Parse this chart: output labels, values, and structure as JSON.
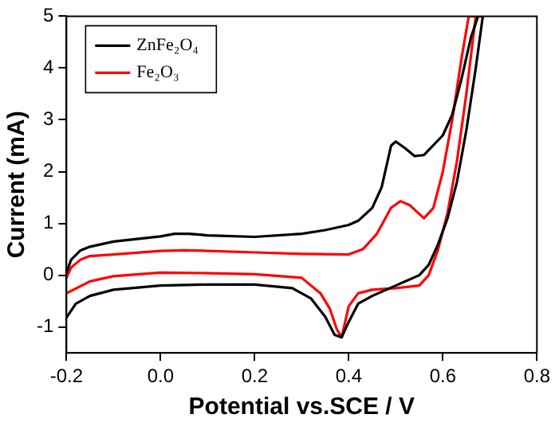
{
  "chart_data": {
    "type": "line",
    "xlabel": "Potential vs.SCE / V",
    "ylabel": "Current (mA)",
    "xlim": [
      -0.2,
      0.8
    ],
    "xticks": [
      {
        "value": -0.2,
        "label": "-0.2"
      },
      {
        "value": 0,
        "label": "0.0"
      },
      {
        "value": 0.2,
        "label": "0.2"
      },
      {
        "value": 0.4,
        "label": "0.4"
      },
      {
        "value": 0.6,
        "label": "0.6"
      },
      {
        "value": 0.8,
        "label": "0.8"
      }
    ],
    "ylim": [
      -1.5,
      5
    ],
    "yticks": [
      -1,
      0,
      1,
      2,
      3,
      4,
      5
    ],
    "grid": false,
    "legend": "top left",
    "marker": "none",
    "line_style": "solid",
    "series": [
      {
        "name": "ZnFe₂O₄",
        "color": "#000000",
        "x": [
          -0.2,
          -0.19,
          -0.17,
          -0.15,
          -0.1,
          -0.05,
          0,
          0.03,
          0.06,
          0.1,
          0.2,
          0.3,
          0.35,
          0.4,
          0.42,
          0.45,
          0.47,
          0.49,
          0.5,
          0.52,
          0.54,
          0.56,
          0.6,
          0.62,
          0.64,
          0.66,
          0.675,
          0.685,
          0.67,
          0.65,
          0.63,
          0.61,
          0.59,
          0.57,
          0.55,
          0.5,
          0.45,
          0.42,
          0.4,
          0.385,
          0.37,
          0.35,
          0.32,
          0.28,
          0.2,
          0.1,
          0,
          -0.1,
          -0.15,
          -0.18,
          -0.2
        ],
        "values": [
          0.05,
          0.3,
          0.48,
          0.55,
          0.65,
          0.7,
          0.75,
          0.8,
          0.8,
          0.77,
          0.74,
          0.8,
          0.87,
          0.97,
          1.05,
          1.3,
          1.7,
          2.5,
          2.58,
          2.45,
          2.3,
          2.32,
          2.7,
          3.1,
          3.8,
          4.6,
          5,
          5,
          4,
          2.8,
          1.8,
          1.1,
          0.6,
          0.2,
          0,
          -0.2,
          -0.4,
          -0.55,
          -0.9,
          -1.2,
          -1.15,
          -0.8,
          -0.45,
          -0.25,
          -0.18,
          -0.18,
          -0.2,
          -0.28,
          -0.4,
          -0.55,
          -0.82
        ]
      },
      {
        "name": "Fe₂O₃",
        "color": "#ff0000",
        "x": [
          -0.2,
          -0.19,
          -0.17,
          -0.15,
          -0.1,
          0,
          0.05,
          0.1,
          0.2,
          0.3,
          0.4,
          0.43,
          0.46,
          0.49,
          0.51,
          0.53,
          0.56,
          0.58,
          0.6,
          0.62,
          0.64,
          0.655,
          0.67,
          0.65,
          0.63,
          0.61,
          0.59,
          0.57,
          0.55,
          0.5,
          0.45,
          0.42,
          0.4,
          0.39,
          0.385,
          0.375,
          0.36,
          0.34,
          0.3,
          0.2,
          0.1,
          0,
          -0.1,
          -0.15,
          -0.2
        ],
        "values": [
          -0.05,
          0.15,
          0.3,
          0.37,
          0.4,
          0.47,
          0.48,
          0.47,
          0.44,
          0.41,
          0.4,
          0.5,
          0.8,
          1.3,
          1.43,
          1.35,
          1.1,
          1.3,
          2,
          3,
          4.2,
          5,
          5,
          3.5,
          2.2,
          1.2,
          0.5,
          0,
          -0.2,
          -0.25,
          -0.28,
          -0.35,
          -0.6,
          -1,
          -1.2,
          -1.05,
          -0.65,
          -0.35,
          -0.05,
          0.02,
          0.04,
          0.05,
          -0.02,
          -0.12,
          -0.35
        ]
      }
    ]
  }
}
